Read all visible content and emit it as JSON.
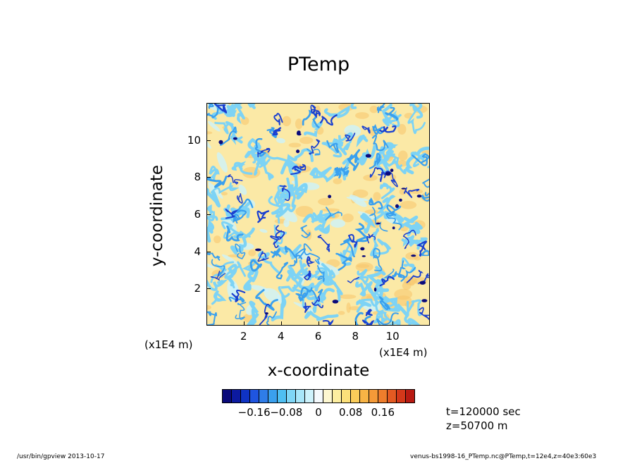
{
  "chart_data": {
    "type": "heatmap",
    "title": "PTemp",
    "xlabel": "x-coordinate",
    "ylabel": "y-coordinate",
    "x_scale_label": "(x1E4 m)",
    "y_scale_label": "(x1E4 m)",
    "xlim": [
      0,
      12
    ],
    "ylim": [
      0,
      12
    ],
    "xticks": [
      "2",
      "4",
      "6",
      "8",
      "10"
    ],
    "yticks": [
      "2",
      "4",
      "6",
      "8",
      "10"
    ],
    "colorbar": {
      "ticks": [
        "-0.16",
        "-0.08",
        "0",
        "0.08",
        "0.16"
      ],
      "tick_values": [
        -0.16,
        -0.08,
        0,
        0.08,
        0.16
      ],
      "range": [
        -0.24,
        0.24
      ],
      "colors": [
        "#0a0a7a",
        "#0c1aa0",
        "#0f33c4",
        "#1f55e0",
        "#2f7de8",
        "#3aa0ee",
        "#4fbff2",
        "#7fd6f6",
        "#a8e6f9",
        "#cdf2fb",
        "#f4f9fc",
        "#fdf7d0",
        "#fdeea0",
        "#fce07a",
        "#fbcd5a",
        "#f8b445",
        "#f49a38",
        "#ee7d2c",
        "#e45a22",
        "#d4381a",
        "#b81a12"
      ]
    },
    "field_description_colors": {
      "background": "#fbe9a6",
      "cold": "#1a3fd0",
      "cool": "#7dd3f5",
      "warm": "#f7c46a"
    }
  },
  "info": {
    "time": "t=120000 sec",
    "height": "z=50700 m"
  },
  "footer": {
    "left": "/usr/bin/gpview   2013-10-17",
    "right": "venus-bs1998-16_PTemp.nc@PTemp,t=12e4,z=40e3:60e3"
  }
}
